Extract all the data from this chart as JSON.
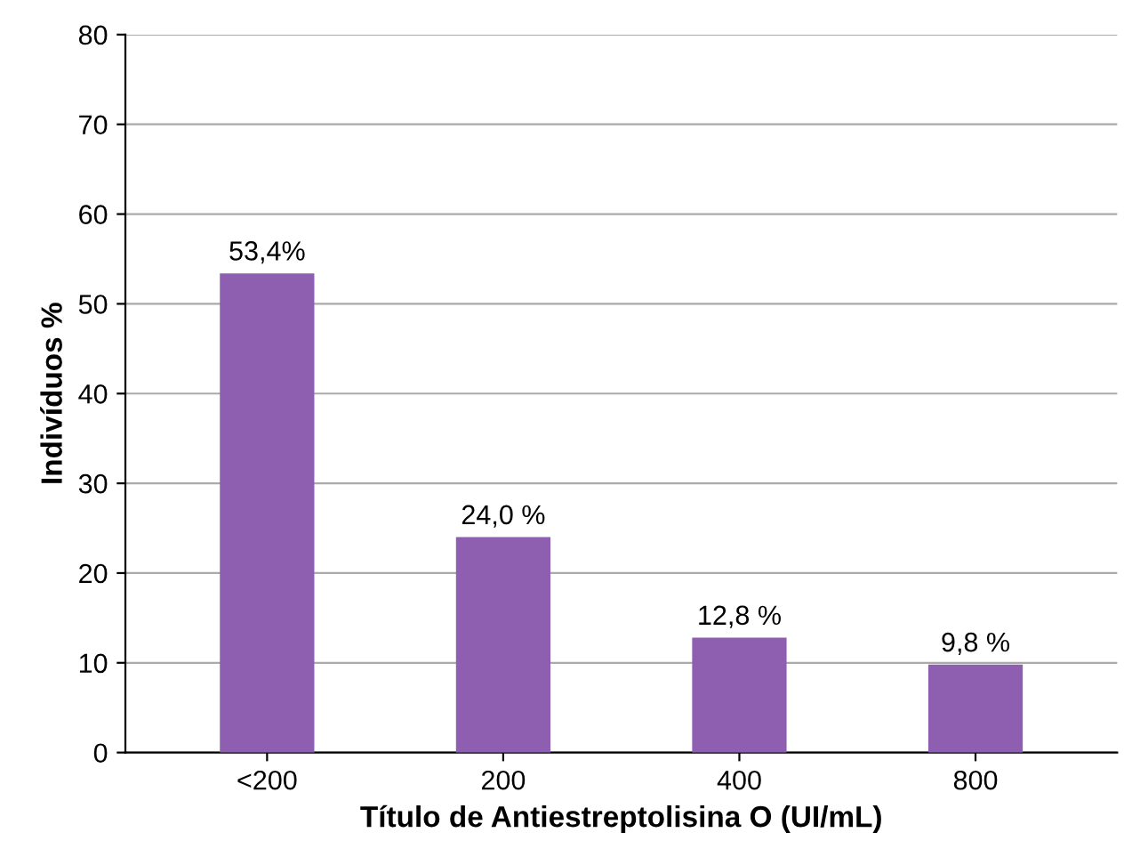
{
  "chart_data": {
    "type": "bar",
    "xlabel": "Título de Antiestreptolisina O (UI/mL)",
    "ylabel": "Indivíduos %",
    "categories": [
      "<200",
      "200",
      "400",
      "800"
    ],
    "values": [
      53.4,
      24.0,
      12.8,
      9.8
    ],
    "value_labels": [
      "53,4%",
      "24,0 %",
      "12,8 %",
      "9,8 %"
    ],
    "color": "#8e5fb0",
    "ylim": [
      0,
      80
    ],
    "yticks": [
      0,
      10,
      20,
      30,
      40,
      50,
      60,
      70,
      80
    ],
    "grid": "y"
  }
}
